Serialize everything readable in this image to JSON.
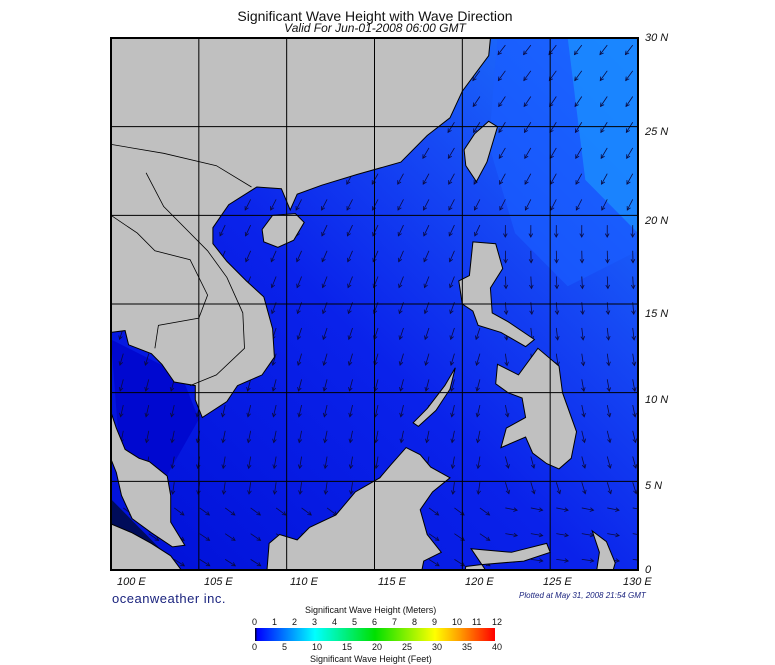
{
  "title": "Significant Wave Height with Wave Direction",
  "subtitle": "Valid For Jun-01-2008 06:00 GMT",
  "map": {
    "lon_range": [
      100,
      130
    ],
    "lat_range": [
      0,
      30
    ],
    "grid_interval_deg": 5,
    "lon_labels": [
      "100 E",
      "105 E",
      "110 E",
      "115 E",
      "120 E",
      "125 E",
      "130 E"
    ],
    "lat_labels": [
      "30 N",
      "25 N",
      "20 N",
      "15 N",
      "10 N",
      "5 N",
      "0"
    ],
    "land_color": "#c0c0c0",
    "dominant_wave_direction": "from northeast"
  },
  "brand": "oceanweather inc.",
  "plotted": "Plotted at May 31, 2008 21:54 GMT",
  "colorbar": {
    "title_top": "Significant Wave Height (Meters)",
    "title_bottom": "Significant Wave Height (Feet)",
    "meters": [
      "0",
      "1",
      "2",
      "3",
      "4",
      "5",
      "6",
      "7",
      "8",
      "9",
      "10",
      "11",
      "12"
    ],
    "feet": [
      "0",
      "5",
      "10",
      "15",
      "20",
      "25",
      "30",
      "35",
      "40"
    ],
    "colors": [
      "#000000",
      "#0000ff",
      "#00ffff",
      "#00ff00",
      "#ffff00",
      "#ff8000",
      "#ff0000"
    ]
  }
}
